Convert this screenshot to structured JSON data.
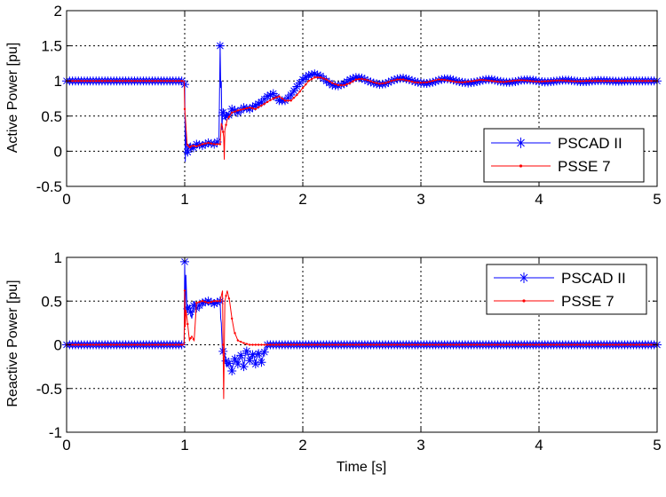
{
  "chart_data": [
    {
      "type": "line",
      "title": "",
      "xlabel": "",
      "ylabel": "Active Power [pu]",
      "xlim": [
        0,
        5
      ],
      "ylim": [
        -0.5,
        2
      ],
      "xticks": [
        0,
        1,
        2,
        3,
        4,
        5
      ],
      "yticks": [
        -0.5,
        0,
        0.5,
        1,
        1.5,
        2
      ],
      "xtick_labels": [
        "0",
        "1",
        "2",
        "3",
        "4",
        "5"
      ],
      "ytick_labels": [
        "-0.5",
        "0",
        "0.5",
        "1",
        "1.5",
        "2"
      ],
      "grid": true,
      "legend": "bottom-right",
      "series": [
        {
          "name": "PSCAD II",
          "color": "#0000ff",
          "marker": "asterisk",
          "x": [
            0.0,
            0.995,
            1.0,
            1.005,
            1.01,
            1.02,
            1.04,
            1.06,
            1.1,
            1.15,
            1.2,
            1.25,
            1.29,
            1.3,
            1.305,
            1.31,
            1.315,
            1.32,
            1.33,
            1.34,
            1.36,
            1.38,
            1.4,
            1.45,
            1.5,
            1.55,
            1.6,
            1.65,
            1.7,
            1.75,
            1.8,
            1.85,
            1.9,
            1.95,
            2.0,
            2.05,
            2.1,
            2.15,
            2.2,
            2.25,
            2.3,
            2.35,
            2.4,
            2.45,
            2.5,
            2.55,
            2.6,
            2.65,
            2.7,
            2.75,
            2.8,
            2.85,
            2.9,
            2.95,
            3.0,
            3.05,
            3.1,
            3.15,
            3.2,
            3.25,
            3.3,
            3.35,
            3.4,
            3.45,
            3.5,
            3.55,
            3.6,
            3.65,
            3.7,
            3.75,
            3.8,
            3.85,
            3.9,
            3.95,
            4.0,
            4.05,
            4.1,
            4.15,
            4.2,
            4.25,
            4.3,
            4.35,
            4.4,
            4.45,
            4.5,
            4.55,
            4.6,
            4.65,
            4.7,
            4.75,
            4.8,
            4.85,
            4.9,
            4.95,
            5.0
          ],
          "y": [
            1.0,
            1.0,
            0.95,
            -0.15,
            0.3,
            -0.05,
            0.1,
            0.02,
            0.1,
            0.08,
            0.12,
            0.1,
            0.15,
            1.5,
            0.9,
            1.0,
            0.3,
            0.5,
            0.6,
            0.45,
            0.55,
            0.5,
            0.6,
            0.55,
            0.62,
            0.6,
            0.65,
            0.7,
            0.78,
            0.82,
            0.72,
            0.72,
            0.8,
            0.92,
            1.02,
            1.08,
            1.1,
            1.07,
            1.0,
            0.94,
            0.93,
            0.96,
            1.02,
            1.05,
            1.04,
            1.0,
            0.97,
            0.95,
            0.96,
            1.0,
            1.03,
            1.04,
            1.02,
            0.99,
            0.97,
            0.965,
            0.98,
            1.01,
            1.03,
            1.025,
            1.0,
            0.98,
            0.97,
            0.98,
            1.0,
            1.02,
            1.02,
            1.0,
            0.985,
            0.98,
            0.99,
            1.01,
            1.015,
            1.01,
            0.995,
            0.985,
            0.99,
            1.0,
            1.01,
            1.01,
            1.0,
            0.99,
            0.99,
            1.0,
            1.005,
            1.005,
            1.0,
            0.995,
            0.995,
            1.0,
            1.0,
            1.0,
            1.0,
            1.0,
            1.0
          ]
        },
        {
          "name": "PSSE 7",
          "color": "#ff0000",
          "marker": "point",
          "x": [
            0.0,
            0.995,
            1.0,
            1.005,
            1.02,
            1.04,
            1.06,
            1.1,
            1.15,
            1.2,
            1.25,
            1.3,
            1.31,
            1.32,
            1.33,
            1.335,
            1.34,
            1.36,
            1.38,
            1.4,
            1.45,
            1.5,
            1.55,
            1.6,
            1.65,
            1.7,
            1.75,
            1.8,
            1.85,
            1.9,
            1.95,
            2.0,
            2.05,
            2.1,
            2.15,
            2.2,
            2.25,
            2.3,
            2.35,
            2.4,
            2.45,
            2.5,
            2.55,
            2.6,
            2.65,
            2.7,
            2.75,
            2.8,
            2.85,
            2.9,
            2.95,
            3.0,
            3.05,
            3.1,
            3.15,
            3.2,
            3.25,
            3.3,
            3.35,
            3.4,
            3.45,
            3.5,
            3.55,
            3.6,
            3.65,
            3.7,
            3.75,
            3.8,
            3.85,
            3.9,
            3.95,
            4.0,
            4.05,
            4.1,
            4.15,
            4.2,
            4.25,
            4.3,
            4.35,
            4.4,
            4.45,
            4.5,
            4.55,
            4.6,
            4.65,
            4.7,
            4.75,
            4.8,
            4.85,
            4.9,
            4.95,
            5.0
          ],
          "y": [
            1.0,
            1.0,
            0.6,
            0.5,
            0.1,
            0.05,
            0.08,
            0.07,
            0.1,
            0.12,
            0.1,
            0.1,
            0.4,
            0.35,
            0.2,
            -0.12,
            0.3,
            0.45,
            0.5,
            0.55,
            0.58,
            0.6,
            0.62,
            0.6,
            0.65,
            0.7,
            0.75,
            0.78,
            0.72,
            0.72,
            0.8,
            0.9,
            1.0,
            1.05,
            1.05,
            1.02,
            0.97,
            0.94,
            0.94,
            0.97,
            1.02,
            1.03,
            1.01,
            0.98,
            0.96,
            0.97,
            1.0,
            1.02,
            1.02,
            1.0,
            0.98,
            0.975,
            0.98,
            1.0,
            1.02,
            1.015,
            1.0,
            0.985,
            0.98,
            0.99,
            1.0,
            1.015,
            1.01,
            1.0,
            0.99,
            0.985,
            0.995,
            1.005,
            1.01,
            1.005,
            0.995,
            0.99,
            0.995,
            1.0,
            1.005,
            1.005,
            1.0,
            0.995,
            0.995,
            1.0,
            1.0,
            1.0,
            1.0,
            1.0,
            1.0,
            1.0,
            1.0,
            1.0,
            1.0,
            1.0,
            1.0,
            1.0
          ]
        }
      ]
    },
    {
      "type": "line",
      "title": "",
      "xlabel": "Time [s]",
      "ylabel": "Reactive Power [pu]",
      "xlim": [
        0,
        5
      ],
      "ylim": [
        -1,
        1
      ],
      "xticks": [
        0,
        1,
        2,
        3,
        4,
        5
      ],
      "yticks": [
        -1,
        -0.5,
        0,
        0.5,
        1
      ],
      "xtick_labels": [
        "0",
        "1",
        "2",
        "3",
        "4",
        "5"
      ],
      "ytick_labels": [
        "-1",
        "-0.5",
        "0",
        "0.5",
        "1"
      ],
      "grid": true,
      "legend": "top-right",
      "series": [
        {
          "name": "PSCAD II",
          "color": "#0000ff",
          "marker": "asterisk",
          "x": [
            0.0,
            0.995,
            1.0,
            1.005,
            1.01,
            1.02,
            1.04,
            1.06,
            1.08,
            1.1,
            1.15,
            1.2,
            1.25,
            1.3,
            1.305,
            1.31,
            1.32,
            1.33,
            1.34,
            1.36,
            1.38,
            1.4,
            1.42,
            1.45,
            1.48,
            1.5,
            1.52,
            1.55,
            1.58,
            1.6,
            1.62,
            1.65,
            1.67,
            1.7,
            1.8,
            2.0,
            2.5,
            3.0,
            3.5,
            4.0,
            4.5,
            5.0
          ],
          "y": [
            0.0,
            0.0,
            0.95,
            0.35,
            0.8,
            0.4,
            0.45,
            0.3,
            0.5,
            0.42,
            0.48,
            0.5,
            0.47,
            0.5,
            0.3,
            0.25,
            -0.1,
            -0.05,
            -0.12,
            -0.25,
            -0.2,
            -0.3,
            -0.15,
            -0.22,
            -0.1,
            -0.25,
            -0.05,
            -0.18,
            -0.1,
            -0.22,
            -0.08,
            -0.2,
            -0.1,
            0.0,
            0.0,
            0.0,
            0.0,
            0.0,
            0.0,
            0.0,
            0.0,
            0.0
          ]
        },
        {
          "name": "PSSE 7",
          "color": "#ff0000",
          "marker": "point",
          "x": [
            0.0,
            0.995,
            1.0,
            1.005,
            1.01,
            1.02,
            1.04,
            1.06,
            1.08,
            1.1,
            1.15,
            1.2,
            1.25,
            1.3,
            1.32,
            1.33,
            1.34,
            1.36,
            1.38,
            1.4,
            1.42,
            1.45,
            1.5,
            1.55,
            1.6,
            1.65,
            1.7,
            1.8,
            2.0,
            2.5,
            3.0,
            3.5,
            4.0,
            4.5,
            5.0
          ],
          "y": [
            0.0,
            0.0,
            0.62,
            0.2,
            0.4,
            0.3,
            0.05,
            0.1,
            0.05,
            0.48,
            0.5,
            0.48,
            0.5,
            0.5,
            0.62,
            -0.62,
            0.5,
            0.62,
            0.5,
            0.3,
            0.15,
            0.05,
            0.02,
            0.0,
            0.0,
            0.0,
            0.0,
            0.0,
            0.0,
            0.0,
            0.0,
            0.0,
            0.0,
            0.0,
            0.0
          ]
        }
      ]
    }
  ]
}
